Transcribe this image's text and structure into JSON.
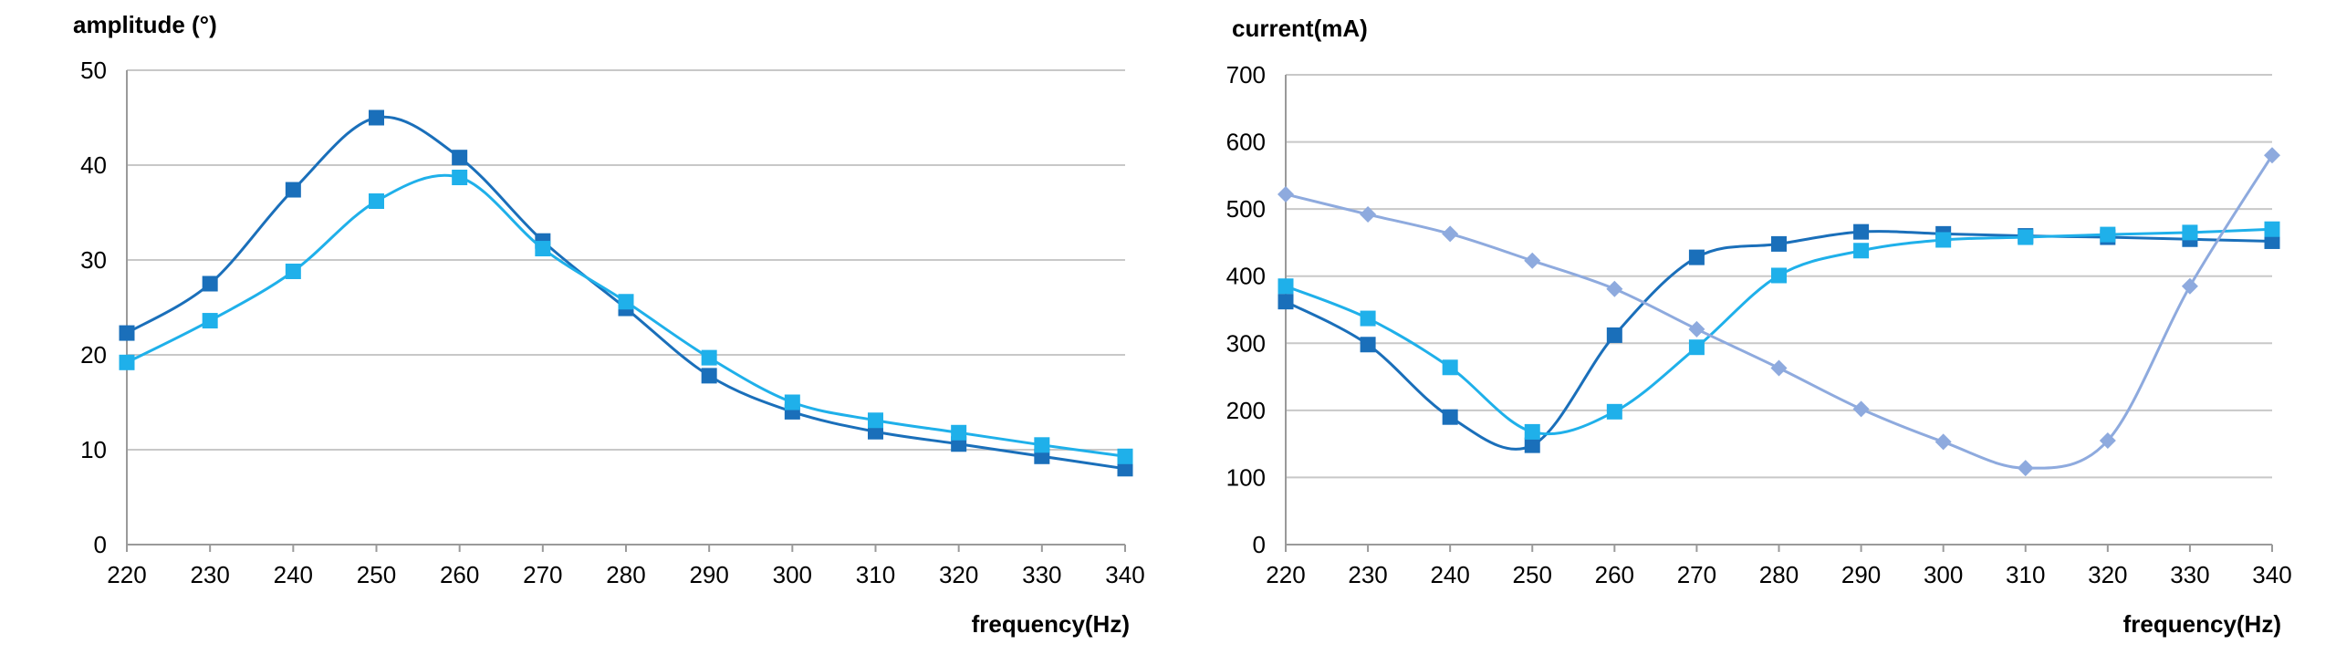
{
  "chart_data": [
    {
      "type": "line",
      "title": "",
      "xlabel": "frequency(Hz)",
      "ylabel": "amplitude (°)",
      "xlim": [
        220,
        340
      ],
      "ylim": [
        0,
        50
      ],
      "x_ticks": [
        220,
        230,
        240,
        250,
        260,
        270,
        280,
        290,
        300,
        310,
        320,
        330,
        340
      ],
      "y_ticks": [
        0,
        10,
        20,
        30,
        40,
        50
      ],
      "grid": "horizontal",
      "legend": "none",
      "x": [
        220,
        230,
        240,
        250,
        260,
        270,
        280,
        290,
        300,
        310,
        320,
        330,
        340
      ],
      "series": [
        {
          "values": [
            22.3,
            27.5,
            37.4,
            45.0,
            40.8,
            32.0,
            24.9,
            17.8,
            14.0,
            11.9,
            10.6,
            9.3,
            8.0
          ],
          "color": "#1a6fba",
          "marker": "square"
        },
        {
          "values": [
            19.2,
            23.6,
            28.8,
            36.2,
            38.7,
            31.2,
            25.6,
            19.7,
            15.0,
            13.1,
            11.8,
            10.5,
            9.3
          ],
          "color": "#1fb0ea",
          "marker": "square"
        }
      ]
    },
    {
      "type": "line",
      "title": "",
      "xlabel": "frequency(Hz)",
      "ylabel": "current(mA)",
      "xlim": [
        220,
        340
      ],
      "ylim": [
        0,
        700
      ],
      "x_ticks": [
        220,
        230,
        240,
        250,
        260,
        270,
        280,
        290,
        300,
        310,
        320,
        330,
        340
      ],
      "y_ticks": [
        0,
        100,
        200,
        300,
        400,
        500,
        600,
        700
      ],
      "grid": "horizontal",
      "legend": "none",
      "x": [
        220,
        230,
        240,
        250,
        260,
        270,
        280,
        290,
        300,
        310,
        320,
        330,
        340
      ],
      "series": [
        {
          "values": [
            362,
            298,
            190,
            148,
            312,
            428,
            448,
            466,
            463,
            460,
            458,
            455,
            452
          ],
          "color": "#1a6fba",
          "marker": "square"
        },
        {
          "values": [
            385,
            337,
            264,
            168,
            198,
            294,
            401,
            438,
            454,
            458,
            462,
            465,
            470
          ],
          "color": "#1fb0ea",
          "marker": "square"
        },
        {
          "values": [
            522,
            492,
            463,
            423,
            381,
            321,
            263,
            202,
            153,
            114,
            155,
            385,
            580
          ],
          "color": "#8eaade",
          "marker": "diamond"
        }
      ]
    }
  ]
}
